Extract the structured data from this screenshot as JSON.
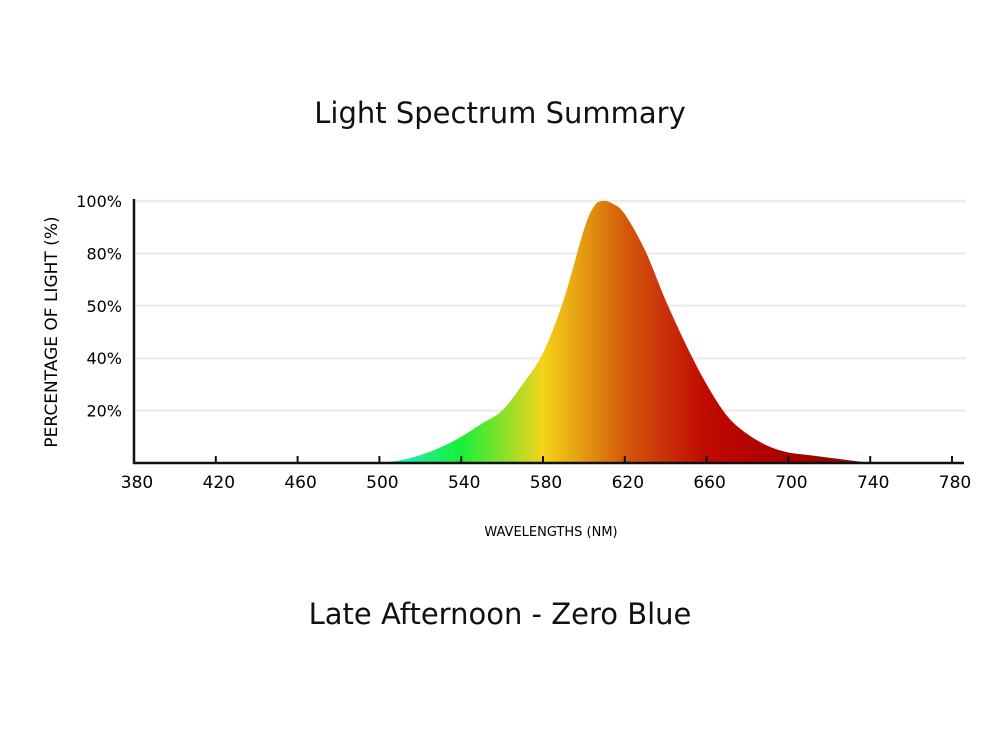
{
  "chart_data": {
    "type": "area",
    "title": "Light Spectrum Summary",
    "subtitle": "Late Afternoon - Zero Blue",
    "xlabel": "WAVELENGTHS (NM)",
    "ylabel": "PERCENTAGE OF LIGHT (%)",
    "xlim": [
      380,
      780
    ],
    "ylim": [
      0,
      100
    ],
    "x_ticks": [
      "380",
      "420",
      "460",
      "500",
      "540",
      "580",
      "620",
      "660",
      "700",
      "740",
      "780"
    ],
    "y_ticks": [
      "20%",
      "40%",
      "50%",
      "80%",
      "100%"
    ],
    "grid": true,
    "series": [
      {
        "name": "Late Afternoon - Zero Blue",
        "x": [
          500,
          510,
          520,
          530,
          540,
          550,
          560,
          570,
          580,
          590,
          600,
          605,
          609,
          614,
          620,
          630,
          640,
          650,
          660,
          670,
          680,
          690,
          700,
          710,
          720,
          730,
          740
        ],
        "y": [
          0,
          1,
          3,
          6,
          10,
          15,
          20,
          30,
          42,
          62,
          89,
          98,
          100,
          99,
          95,
          81,
          62,
          45,
          30,
          18,
          11,
          6.5,
          4,
          3,
          2,
          1,
          0
        ]
      }
    ],
    "gradient_colors": [
      {
        "nm": 500,
        "color": "#2ee6d6"
      },
      {
        "nm": 540,
        "color": "#17f03a"
      },
      {
        "nm": 580,
        "color": "#f5d21a"
      },
      {
        "nm": 605,
        "color": "#e08a10"
      },
      {
        "nm": 620,
        "color": "#d45a0a"
      },
      {
        "nm": 640,
        "color": "#c8300a"
      },
      {
        "nm": 660,
        "color": "#c00a00"
      },
      {
        "nm": 690,
        "color": "#b00000"
      },
      {
        "nm": 725,
        "color": "#8a0a00"
      }
    ]
  }
}
